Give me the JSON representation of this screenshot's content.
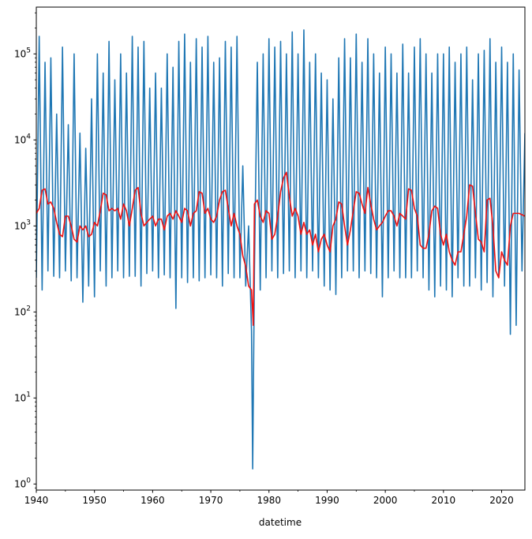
{
  "chart_data": {
    "type": "line",
    "title": "",
    "xlabel": "datetime",
    "ylabel": "",
    "xlim": [
      1940.0,
      2024.0
    ],
    "ylim": [
      0.85,
      350000
    ],
    "y_scale": "log",
    "grid": false,
    "x_ticks": [
      {
        "value": 1940,
        "label": "1940"
      },
      {
        "value": 1950,
        "label": "1950"
      },
      {
        "value": 1960,
        "label": "1960"
      },
      {
        "value": 1970,
        "label": "1970"
      },
      {
        "value": 1980,
        "label": "1980"
      },
      {
        "value": 1990,
        "label": "1990"
      },
      {
        "value": 2000,
        "label": "2000"
      },
      {
        "value": 2010,
        "label": "2010"
      },
      {
        "value": 2020,
        "label": "2020"
      }
    ],
    "x_minor_ticks": [
      1945,
      1955,
      1965,
      1975,
      1985,
      1995,
      2005,
      2015
    ],
    "y_ticks": [
      {
        "value": 1,
        "base": "10",
        "exp": "0"
      },
      {
        "value": 10,
        "base": "10",
        "exp": "1"
      },
      {
        "value": 100,
        "base": "10",
        "exp": "2"
      },
      {
        "value": 1000,
        "base": "10",
        "exp": "3"
      },
      {
        "value": 10000,
        "base": "10",
        "exp": "4"
      },
      {
        "value": 100000,
        "base": "10",
        "exp": "5"
      }
    ],
    "series": [
      {
        "color": "#1f77b4",
        "style": "seasonal daily flow (annual peak / annual low)",
        "x": [
          1940.0,
          1940.5,
          1941.0,
          1941.5,
          1942.0,
          1942.5,
          1943.0,
          1943.5,
          1944.0,
          1944.5,
          1945.0,
          1945.5,
          1946.0,
          1946.5,
          1947.0,
          1947.5,
          1948.0,
          1948.5,
          1949.0,
          1949.5,
          1950.0,
          1950.5,
          1951.0,
          1951.5,
          1952.0,
          1952.5,
          1953.0,
          1953.5,
          1954.0,
          1954.5,
          1955.0,
          1955.5,
          1956.0,
          1956.5,
          1957.0,
          1957.5,
          1958.0,
          1958.5,
          1959.0,
          1959.5,
          1960.0,
          1960.5,
          1961.0,
          1961.5,
          1962.0,
          1962.5,
          1963.0,
          1963.5,
          1964.0,
          1964.5,
          1965.0,
          1965.5,
          1966.0,
          1966.5,
          1967.0,
          1967.5,
          1968.0,
          1968.5,
          1969.0,
          1969.5,
          1970.0,
          1970.5,
          1971.0,
          1971.5,
          1972.0,
          1972.5,
          1973.0,
          1973.5,
          1974.0,
          1974.5,
          1975.0,
          1975.5,
          1976.0,
          1976.5,
          1977.0,
          1977.2,
          1977.5,
          1978.0,
          1978.5,
          1979.0,
          1979.5,
          1980.0,
          1980.5,
          1981.0,
          1981.5,
          1982.0,
          1982.5,
          1983.0,
          1983.5,
          1984.0,
          1984.5,
          1985.0,
          1985.5,
          1986.0,
          1986.5,
          1987.0,
          1987.5,
          1988.0,
          1988.5,
          1989.0,
          1989.5,
          1990.0,
          1990.5,
          1991.0,
          1991.5,
          1992.0,
          1992.5,
          1993.0,
          1993.5,
          1994.0,
          1994.5,
          1995.0,
          1995.5,
          1996.0,
          1996.5,
          1997.0,
          1997.5,
          1998.0,
          1998.5,
          1999.0,
          1999.5,
          2000.0,
          2000.5,
          2001.0,
          2001.5,
          2002.0,
          2002.5,
          2003.0,
          2003.5,
          2004.0,
          2004.5,
          2005.0,
          2005.5,
          2006.0,
          2006.5,
          2007.0,
          2007.5,
          2008.0,
          2008.5,
          2009.0,
          2009.5,
          2010.0,
          2010.5,
          2011.0,
          2011.5,
          2012.0,
          2012.5,
          2013.0,
          2013.5,
          2014.0,
          2014.5,
          2015.0,
          2015.5,
          2016.0,
          2016.5,
          2017.0,
          2017.5,
          2018.0,
          2018.5,
          2019.0,
          2019.5,
          2020.0,
          2020.5,
          2021.0,
          2021.5,
          2022.0,
          2022.5,
          2023.0,
          2023.5,
          2024.0
        ],
        "y": [
          250,
          160000,
          180,
          80000,
          300,
          90000,
          260,
          20000,
          250,
          120000,
          300,
          15000,
          230,
          100000,
          250,
          12000,
          130,
          8000,
          200,
          30000,
          150,
          100000,
          300,
          60000,
          200,
          140000,
          250,
          50000,
          300,
          100000,
          250,
          60000,
          260,
          160000,
          260,
          120000,
          200,
          140000,
          280,
          40000,
          300,
          60000,
          250,
          40000,
          270,
          100000,
          250,
          70000,
          110,
          140000,
          250,
          170000,
          220,
          80000,
          250,
          150000,
          230,
          120000,
          250,
          160000,
          270,
          80000,
          250,
          90000,
          200,
          140000,
          280,
          120000,
          250,
          160000,
          250,
          5000,
          200,
          1000,
          60,
          1.5,
          300,
          80000,
          180,
          100000,
          250,
          150000,
          300,
          120000,
          250,
          140000,
          280,
          100000,
          300,
          180000,
          250,
          100000,
          300,
          190000,
          250,
          80000,
          300,
          100000,
          250,
          60000,
          200,
          50000,
          180,
          30000,
          160,
          90000,
          250,
          150000,
          300,
          90000,
          300,
          170000,
          250,
          80000,
          300,
          150000,
          280,
          100000,
          250,
          60000,
          150,
          120000,
          250,
          100000,
          300,
          60000,
          250,
          130000,
          250,
          60000,
          250,
          120000,
          300,
          150000,
          250,
          100000,
          180,
          60000,
          150,
          100000,
          200,
          100000,
          180,
          120000,
          150,
          80000,
          250,
          100000,
          200,
          120000,
          200,
          50000,
          250,
          100000,
          180,
          110000,
          220,
          150000,
          150,
          80000,
          250,
          120000,
          200,
          80000,
          55,
          100000,
          70,
          65000,
          300,
          12000
        ]
      },
      {
        "color": "#ee1111",
        "style": "rolling mean",
        "x": [
          1940.0,
          1940.5,
          1941.0,
          1941.5,
          1942.0,
          1942.5,
          1943.0,
          1943.5,
          1944.0,
          1944.5,
          1945.0,
          1945.5,
          1946.0,
          1946.5,
          1947.0,
          1947.5,
          1948.0,
          1948.5,
          1949.0,
          1949.5,
          1950.0,
          1950.5,
          1951.0,
          1951.5,
          1952.0,
          1952.5,
          1953.0,
          1953.5,
          1954.0,
          1954.5,
          1955.0,
          1955.5,
          1956.0,
          1956.5,
          1957.0,
          1957.5,
          1958.0,
          1958.5,
          1959.0,
          1959.5,
          1960.0,
          1960.5,
          1961.0,
          1961.5,
          1962.0,
          1962.5,
          1963.0,
          1963.5,
          1964.0,
          1964.5,
          1965.0,
          1965.5,
          1966.0,
          1966.5,
          1967.0,
          1967.5,
          1968.0,
          1968.5,
          1969.0,
          1969.5,
          1970.0,
          1970.5,
          1971.0,
          1971.5,
          1972.0,
          1972.5,
          1973.0,
          1973.5,
          1974.0,
          1974.5,
          1975.0,
          1975.5,
          1976.0,
          1976.5,
          1977.0,
          1977.3,
          1977.5,
          1978.0,
          1978.5,
          1979.0,
          1979.5,
          1980.0,
          1980.5,
          1981.0,
          1981.5,
          1982.0,
          1982.5,
          1983.0,
          1983.5,
          1984.0,
          1984.5,
          1985.0,
          1985.5,
          1986.0,
          1986.5,
          1987.0,
          1987.5,
          1988.0,
          1988.5,
          1989.0,
          1989.5,
          1990.0,
          1990.5,
          1991.0,
          1991.5,
          1992.0,
          1992.5,
          1993.0,
          1993.5,
          1994.0,
          1994.5,
          1995.0,
          1995.5,
          1996.0,
          1996.5,
          1997.0,
          1997.5,
          1998.0,
          1998.5,
          1999.0,
          1999.5,
          2000.0,
          2000.5,
          2001.0,
          2001.5,
          2002.0,
          2002.5,
          2003.0,
          2003.5,
          2004.0,
          2004.5,
          2005.0,
          2005.5,
          2006.0,
          2006.5,
          2007.0,
          2007.5,
          2008.0,
          2008.5,
          2009.0,
          2009.5,
          2010.0,
          2010.5,
          2011.0,
          2011.5,
          2012.0,
          2012.5,
          2013.0,
          2013.5,
          2014.0,
          2014.5,
          2015.0,
          2015.5,
          2016.0,
          2016.5,
          2017.0,
          2017.5,
          2018.0,
          2018.5,
          2019.0,
          2019.5,
          2020.0,
          2020.5,
          2021.0,
          2021.5,
          2022.0,
          2022.5,
          2023.0,
          2023.5,
          2024.0
        ],
        "y": [
          1400,
          1600,
          2600,
          2700,
          1800,
          1900,
          1600,
          1100,
          800,
          750,
          1300,
          1300,
          1000,
          700,
          650,
          1000,
          900,
          1000,
          750,
          800,
          1100,
          1000,
          1500,
          2400,
          2300,
          1500,
          1600,
          1500,
          1600,
          1200,
          1800,
          1500,
          1000,
          1600,
          2600,
          2800,
          1400,
          1000,
          1100,
          1200,
          1300,
          1000,
          1200,
          1200,
          900,
          1300,
          1400,
          1200,
          1500,
          1300,
          1100,
          1600,
          1500,
          1000,
          1400,
          1500,
          2500,
          2400,
          1400,
          1600,
          1200,
          1100,
          1300,
          2000,
          2500,
          2600,
          1600,
          1000,
          1400,
          1000,
          800,
          450,
          340,
          200,
          180,
          70,
          1800,
          2000,
          1300,
          1100,
          1500,
          1400,
          700,
          800,
          1300,
          2500,
          3600,
          4200,
          2200,
          1300,
          1600,
          1300,
          800,
          1100,
          800,
          900,
          600,
          800,
          500,
          700,
          800,
          600,
          500,
          1000,
          1200,
          1900,
          1800,
          1000,
          600,
          900,
          1500,
          2500,
          2400,
          1800,
          1400,
          2800,
          1800,
          1200,
          900,
          1000,
          1100,
          1300,
          1500,
          1500,
          1300,
          1000,
          1400,
          1300,
          1200,
          2700,
          2600,
          1600,
          1300,
          600,
          550,
          550,
          800,
          1500,
          1700,
          1600,
          800,
          600,
          800,
          500,
          400,
          350,
          500,
          500,
          800,
          1300,
          3000,
          2900,
          1400,
          700,
          650,
          500,
          2000,
          2100,
          1000,
          300,
          250,
          500,
          400,
          350,
          1000,
          1400,
          1400,
          1400,
          1350,
          1300
        ]
      }
    ]
  }
}
